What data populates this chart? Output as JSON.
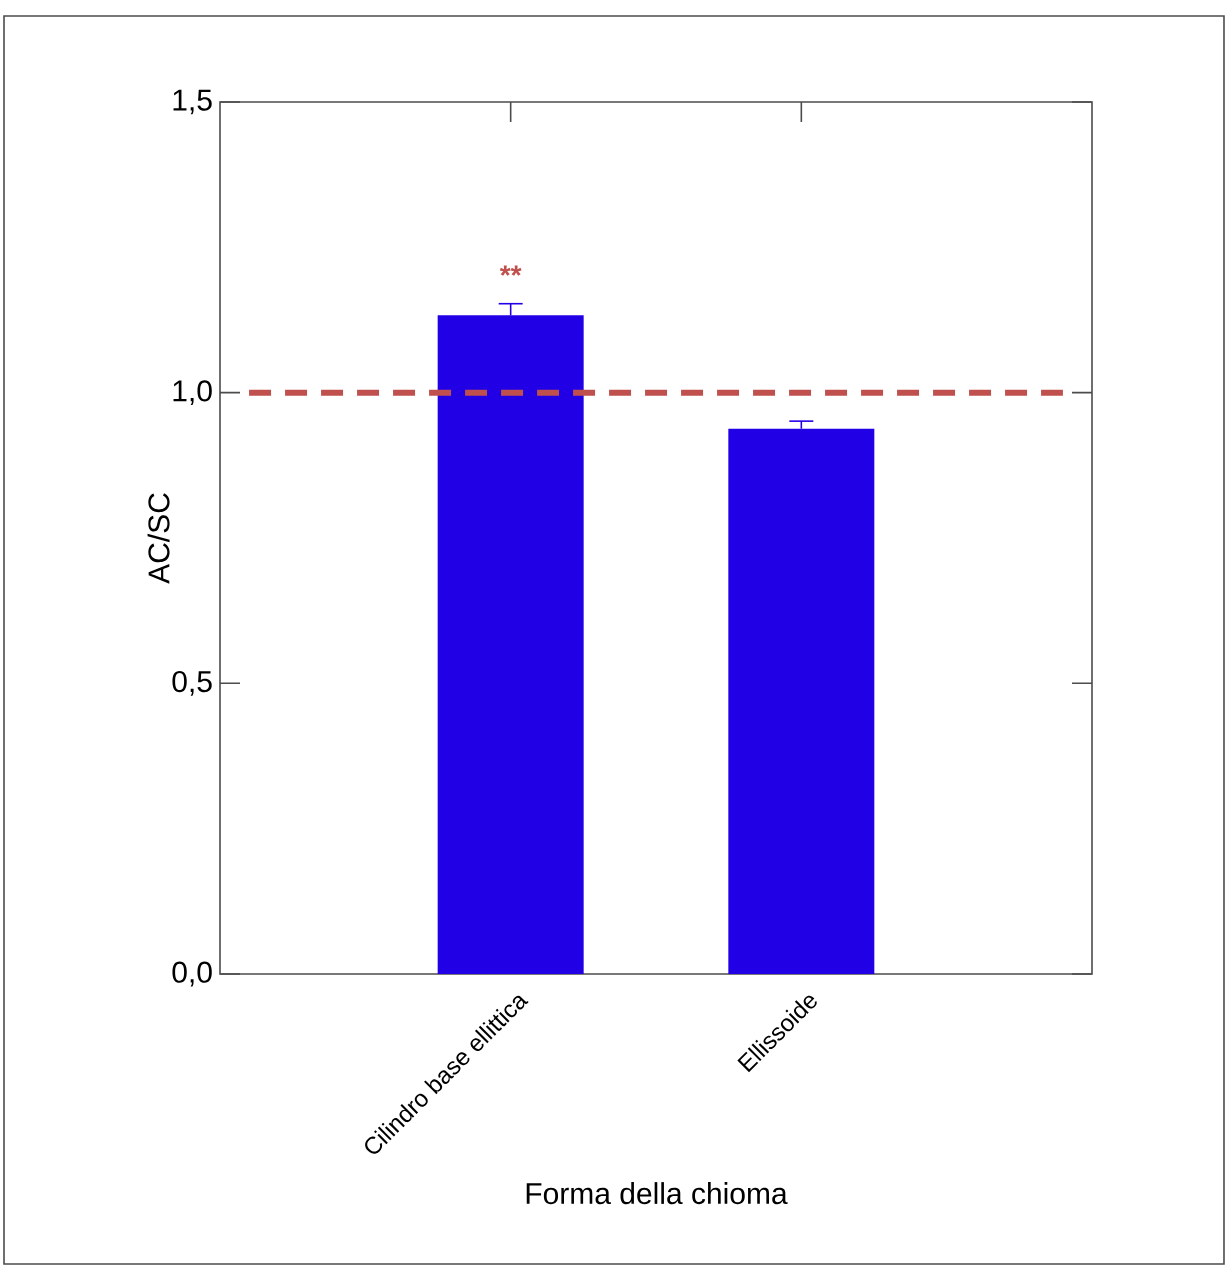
{
  "chart_data": {
    "type": "bar",
    "categories": [
      "Cilindro base ellittica",
      "Ellissoide"
    ],
    "values": [
      1.133,
      0.938
    ],
    "errors": [
      0.02,
      0.013
    ],
    "color": "#2200e6",
    "xlabel": "Forma della chioma",
    "ylabel": "AC/SC",
    "ylim": [
      0,
      1.5
    ],
    "yticks": [
      {
        "value": 0,
        "label": "0,0"
      },
      {
        "value": 0.5,
        "label": "0,5"
      },
      {
        "value": 1.0,
        "label": "1,0"
      },
      {
        "value": 1.5,
        "label": "1,5"
      }
    ],
    "ref_lines": [
      {
        "axis": "y",
        "value": 1.0,
        "color": "#c0504d",
        "line_style": "dashed"
      }
    ],
    "annotations": [
      "**"
    ],
    "grid": false
  }
}
